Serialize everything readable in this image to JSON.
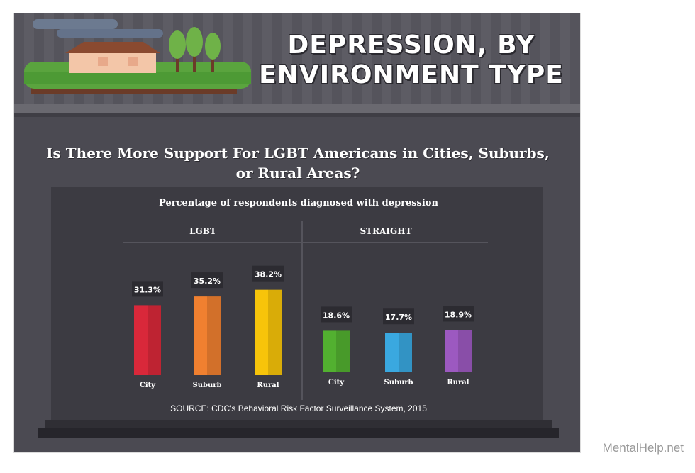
{
  "main_title": "DEPRESSION, BY ENVIRONMENT TYPE",
  "subtitle": "Is There More Support For LGBT Americans in Cities, Suburbs, or Rural Areas?",
  "watermark": "MentalHelp.net",
  "colors": {
    "background": "#4b4a52",
    "panel": "#3c3b42",
    "city_lgbt": "#d9283a",
    "suburb_lgbt": "#f08030",
    "rural_lgbt": "#f7c40a",
    "city_straight": "#52b030",
    "suburb_straight": "#3aa8e0",
    "rural_straight": "#9c59c0"
  },
  "chart_data": {
    "type": "bar",
    "title": "Percentage of respondents diagnosed with depression",
    "source": "SOURCE: CDC's Behavioral Risk Factor Surveillance System, 2015",
    "categories": [
      "City",
      "Suburb",
      "Rural"
    ],
    "series": [
      {
        "name": "LGBT",
        "values": [
          31.3,
          35.2,
          38.2
        ],
        "labels": [
          "31.3%",
          "35.2%",
          "38.2%"
        ],
        "colors": [
          "#d9283a",
          "#f08030",
          "#f7c40a"
        ]
      },
      {
        "name": "STRAIGHT",
        "values": [
          18.6,
          17.7,
          18.9
        ],
        "labels": [
          "18.6%",
          "17.7%",
          "18.9%"
        ],
        "colors": [
          "#52b030",
          "#3aa8e0",
          "#9c59c0"
        ]
      }
    ],
    "ylim": [
      0,
      40
    ],
    "grid": false,
    "legend": "none"
  }
}
